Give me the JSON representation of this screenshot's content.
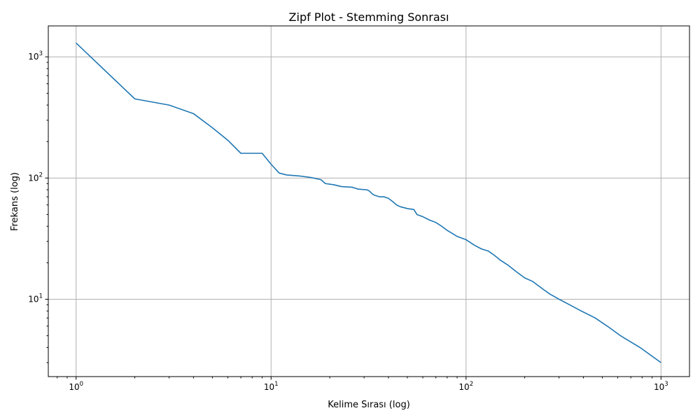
{
  "chart_data": {
    "type": "line",
    "title": "Zipf Plot - Stemming Sonrası",
    "xlabel": "Kelime Sırası (log)",
    "ylabel": "Frekans (log)",
    "xscale": "log",
    "yscale": "log",
    "xlim": [
      0.72,
      1400
    ],
    "ylim": [
      2.3,
      1800
    ],
    "grid": true,
    "x_ticks": [
      {
        "base": "10",
        "exp": "0",
        "value": 1
      },
      {
        "base": "10",
        "exp": "1",
        "value": 10
      },
      {
        "base": "10",
        "exp": "2",
        "value": 100
      },
      {
        "base": "10",
        "exp": "3",
        "value": 1000
      }
    ],
    "y_ticks": [
      {
        "base": "10",
        "exp": "1",
        "value": 10
      },
      {
        "base": "10",
        "exp": "2",
        "value": 100
      },
      {
        "base": "10",
        "exp": "3",
        "value": 1000
      }
    ],
    "colors": {
      "series": "#1f77b4"
    },
    "series": [
      {
        "x": [
          1,
          2,
          3,
          4,
          5,
          6,
          7,
          8,
          9,
          10,
          11,
          12,
          14,
          16,
          18,
          19,
          21,
          23,
          26,
          28,
          31,
          32,
          33,
          34,
          36,
          38,
          40,
          42,
          44,
          46,
          50,
          54,
          56,
          60,
          65,
          70,
          75,
          80,
          90,
          100,
          110,
          120,
          130,
          140,
          150,
          165,
          180,
          200,
          220,
          250,
          270,
          300,
          340,
          390,
          460,
          530,
          620,
          780,
          1000
        ],
        "y": [
          1300,
          450,
          400,
          340,
          260,
          205,
          160,
          160,
          160,
          130,
          110,
          106,
          104,
          101,
          97,
          90,
          88,
          85,
          84,
          81,
          80,
          78,
          74,
          72,
          70,
          70,
          68,
          64,
          60,
          58,
          56,
          55,
          50,
          48,
          45,
          43,
          40,
          37,
          33,
          31,
          28,
          26,
          25,
          23,
          21,
          19,
          17,
          15,
          14,
          12,
          11,
          10,
          9,
          8,
          7,
          6,
          5,
          4,
          3
        ]
      }
    ]
  }
}
